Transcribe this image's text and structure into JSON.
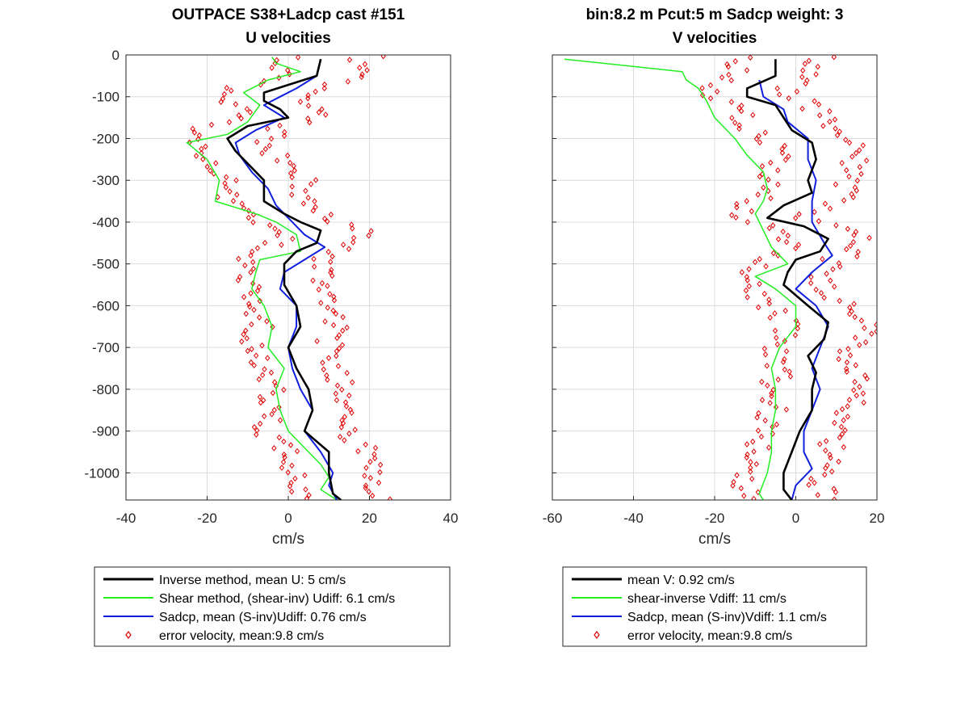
{
  "chart_data": [
    {
      "type": "line",
      "title": "OUTPACE S38+Ladcp cast #151",
      "subtitle": "U velocities",
      "xlabel": "cm/s",
      "ylabel": "",
      "xlim": [
        -40,
        40
      ],
      "ylim": [
        -1065,
        0
      ],
      "xticks": [
        -40,
        -20,
        0,
        20,
        40
      ],
      "yticks": [
        0,
        -100,
        -200,
        -300,
        -400,
        -500,
        -600,
        -700,
        -800,
        -900,
        -1000
      ],
      "grid": true,
      "legend_position": "below",
      "series": [
        {
          "name": "Inverse method, mean U:  5 cm/s",
          "color": "#000000",
          "y": [
            -10,
            -50,
            -90,
            -110,
            -130,
            -150,
            -170,
            -200,
            -230,
            -260,
            -300,
            -350,
            -380,
            -400,
            -420,
            -450,
            -470,
            -500,
            -550,
            -600,
            -650,
            -700,
            -750,
            -800,
            -850,
            -900,
            -950,
            -1000,
            -1050,
            -1065
          ],
          "x": [
            8,
            7,
            -6,
            -6,
            -2,
            0,
            -10,
            -15,
            -13,
            -10,
            -6,
            -6,
            -1,
            3,
            8,
            7,
            2,
            -1,
            -1,
            2,
            3,
            0,
            2,
            5,
            6,
            4,
            10,
            10,
            11,
            13
          ]
        },
        {
          "name": "Shear method, (shear-inv)  Udiff:  6.1 cm/s",
          "color": "#22ee22",
          "y": [
            -5,
            -20,
            -40,
            -60,
            -90,
            -120,
            -160,
            -190,
            -210,
            -250,
            -300,
            -350,
            -380,
            -400,
            -430,
            -470,
            -490,
            -520,
            -560,
            -600,
            -650,
            -700,
            -750,
            -800,
            -850,
            -900,
            -950,
            -980,
            -1010,
            -1040,
            -1065
          ],
          "x": [
            -4,
            -3,
            3,
            -5,
            -11,
            -7,
            -10,
            -15,
            -25,
            -20,
            -17,
            -18,
            -8,
            -3,
            2,
            3,
            -7,
            -8,
            -9,
            -6,
            -4,
            -5,
            -1,
            -3,
            -2,
            0,
            5,
            8,
            10,
            8,
            12
          ]
        },
        {
          "name": "Sadcp, mean (S-inv)Udiff: 0.76 cm/s",
          "color": "#1020dd",
          "y": [
            -50,
            -80,
            -100,
            -120,
            -150,
            -180,
            -210,
            -240,
            -280,
            -320,
            -360,
            -400,
            -430,
            -460,
            -490,
            -520,
            -560,
            -600,
            -650,
            -700,
            -750,
            -800,
            -850,
            -900,
            -950,
            -1000,
            -1030,
            -1065
          ],
          "x": [
            7,
            2,
            -2,
            -6,
            -1,
            -8,
            -13,
            -12,
            -9,
            -5,
            -3,
            1,
            4,
            9,
            4,
            -1,
            -2,
            2,
            2,
            0,
            1,
            3,
            6,
            4,
            8,
            11,
            10,
            12
          ]
        },
        {
          "name": "error velocity, mean:9.8 cm/s",
          "color": "#e00000",
          "marker": "diamond",
          "x_center": [
            9.8
          ],
          "note_points": "scattered diamonds around mean error velocity"
        }
      ]
    },
    {
      "type": "line",
      "title": "bin:8.2 m  Pcut:5 m  Sadcp weight: 3",
      "subtitle": "V velocities",
      "xlabel": "cm/s",
      "ylabel": "",
      "xlim": [
        -60,
        20
      ],
      "ylim": [
        -1065,
        0
      ],
      "xticks": [
        -60,
        -40,
        -20,
        0,
        20
      ],
      "yticks": [
        0,
        -100,
        -200,
        -300,
        -400,
        -500,
        -600,
        -700,
        -800,
        -900,
        -1000
      ],
      "grid": true,
      "legend_position": "below",
      "series": [
        {
          "name": "mean V:  0.92 cm/s",
          "color": "#000000",
          "y": [
            -10,
            -50,
            -80,
            -100,
            -120,
            -150,
            -180,
            -210,
            -250,
            -300,
            -330,
            -360,
            -390,
            -410,
            -440,
            -470,
            -490,
            -520,
            -550,
            -600,
            -640,
            -680,
            -720,
            -760,
            -800,
            -850,
            -900,
            -950,
            -1000,
            -1040,
            -1065
          ],
          "x": [
            -5,
            -5,
            -12,
            -12,
            -5,
            -3,
            -1,
            4,
            5,
            3,
            4,
            -3,
            -7,
            2,
            8,
            6,
            0,
            -2,
            -3,
            3,
            8,
            7,
            3,
            5,
            4,
            4,
            1,
            -1,
            -3,
            -3,
            -1
          ]
        },
        {
          "name": "shear-inverse Vdiff:  11 cm/s",
          "color": "#22ee22",
          "y": [
            -10,
            -40,
            -60,
            -80,
            -110,
            -150,
            -200,
            -240,
            -280,
            -320,
            -350,
            -380,
            -420,
            -460,
            -500,
            -530,
            -560,
            -600,
            -650,
            -700,
            -750,
            -800,
            -850,
            -900,
            -950,
            -1000,
            -1050,
            -1065
          ],
          "x": [
            -57,
            -28,
            -27,
            -24,
            -22,
            -20,
            -15,
            -12,
            -8,
            -7,
            -8,
            -10,
            -8,
            -6,
            -2,
            -10,
            -5,
            0,
            0,
            -4,
            -6,
            -5,
            -5,
            -6,
            -6,
            -7,
            -9,
            -8
          ]
        },
        {
          "name": "Sadcp, mean (S-inv)Vdiff: 1.1 cm/s",
          "color": "#1020dd",
          "y": [
            -60,
            -100,
            -130,
            -160,
            -200,
            -250,
            -300,
            -350,
            -400,
            -450,
            -480,
            -520,
            -560,
            -600,
            -650,
            -700,
            -750,
            -800,
            -850,
            -900,
            -950,
            -990,
            -1030,
            -1065
          ],
          "x": [
            -9,
            -8,
            -3,
            -2,
            3,
            3,
            5,
            4,
            4,
            7,
            9,
            4,
            0,
            5,
            8,
            6,
            4,
            6,
            4,
            2,
            2,
            4,
            0,
            -1
          ]
        },
        {
          "name": "error velocity, mean:9.8 cm/s",
          "color": "#e00000",
          "marker": "diamond",
          "x_center": [
            9.8
          ],
          "note_points": "scattered diamonds around mean error velocity"
        }
      ]
    }
  ]
}
